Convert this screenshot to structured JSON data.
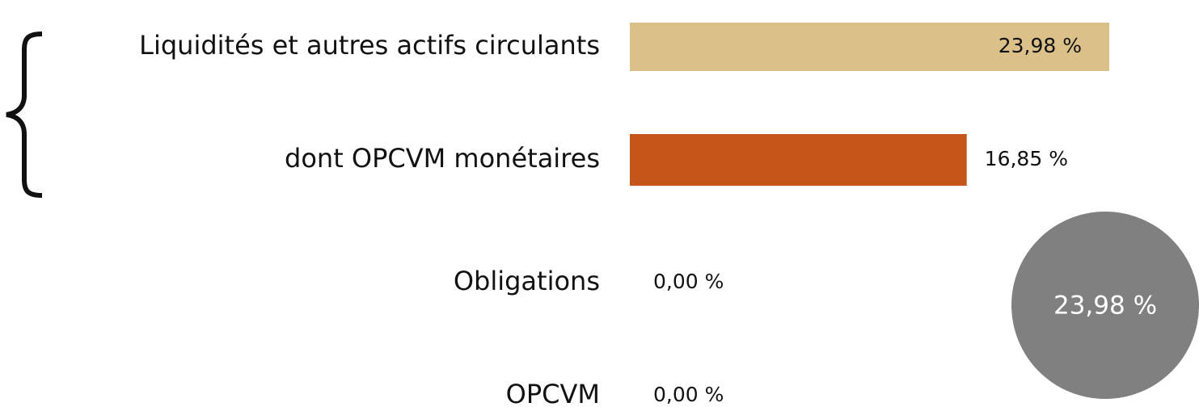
{
  "chart_data": {
    "type": "bar",
    "orientation": "horizontal",
    "categories": [
      "Liquidités et autres actifs circulants",
      "dont OPCVM monétaires",
      "Obligations",
      "OPCVM"
    ],
    "values": [
      23.98,
      16.85,
      0,
      0
    ],
    "value_labels": [
      "23,98 %",
      "16,85 %",
      "0,00 %",
      "0,00 %"
    ],
    "colors": [
      "#dcc08a",
      "#c4561a",
      "#c4561a",
      "#c4561a"
    ],
    "annotation": "23,98 %"
  }
}
